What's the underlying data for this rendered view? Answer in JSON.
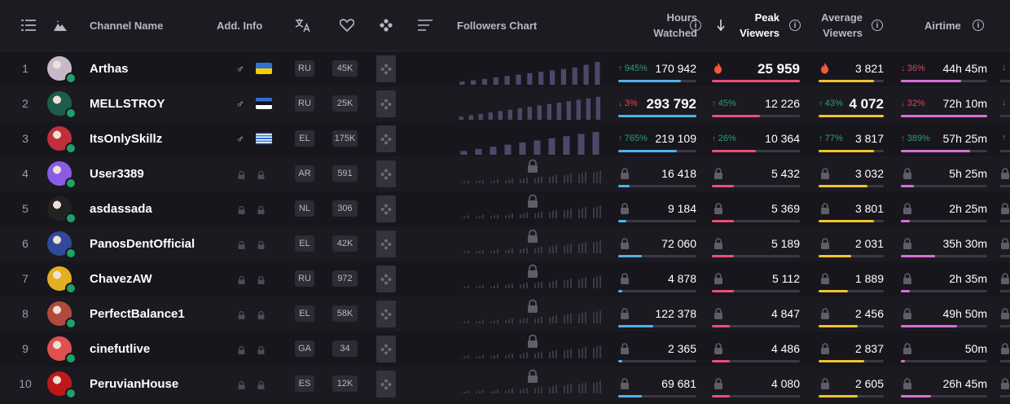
{
  "header": {
    "channel_name": "Channel Name",
    "add_info": "Add. Info",
    "followers_chart": "Followers Chart",
    "hours_watched": [
      "Hours",
      "Watched"
    ],
    "peak_viewers": [
      "Peak",
      "Viewers"
    ],
    "average_viewers": [
      "Average",
      "Viewers"
    ],
    "airtime": "Airtime",
    "info_glyph": "i"
  },
  "colors": {
    "hours": "#4fb3ec",
    "peak": "#ec4d77",
    "average": "#f2c230",
    "airtime": "#d86fd6",
    "up": "#2aa06a",
    "down": "#d24a5a",
    "chart_bar": "#4b4868"
  },
  "rows": [
    {
      "rank": "1",
      "name": "Arthas",
      "gender": "♂",
      "flag": "ua",
      "lang": "RU",
      "followers": "45K",
      "unlocked": true,
      "chart": [
        1,
        2,
        3,
        4,
        5,
        6,
        7,
        8,
        9,
        10,
        11,
        13,
        15
      ],
      "hours": {
        "change": "945%",
        "dir": "up",
        "value": "170 942",
        "fill": 0.8,
        "big": false
      },
      "peak": {
        "change": "",
        "dir": "",
        "value": "25 959",
        "fill": 1.0,
        "big": true,
        "fire": true
      },
      "avg": {
        "change": "",
        "dir": "",
        "value": "3 821",
        "fill": 0.85,
        "big": false,
        "fire": true
      },
      "air": {
        "change": "36%",
        "dir": "down",
        "value": "44h 45m",
        "fill": 0.7,
        "big": false
      }
    },
    {
      "rank": "2",
      "name": "MELLSTROY",
      "gender": "♂",
      "flag": "ee",
      "lang": "RU",
      "followers": "25K",
      "unlocked": true,
      "chart": [
        1,
        2,
        3,
        4,
        5,
        6,
        7,
        8,
        9,
        10,
        11,
        12,
        13,
        14,
        15
      ],
      "hours": {
        "change": "3%",
        "dir": "down",
        "value": "293 792",
        "fill": 1.0,
        "big": true
      },
      "peak": {
        "change": "45%",
        "dir": "up",
        "value": "12 226",
        "fill": 0.55,
        "big": false
      },
      "avg": {
        "change": "43%",
        "dir": "up",
        "value": "4 072",
        "fill": 1.0,
        "big": true
      },
      "air": {
        "change": "32%",
        "dir": "down",
        "value": "72h 10m",
        "fill": 1.0,
        "big": false
      }
    },
    {
      "rank": "3",
      "name": "ItsOnlySkillz",
      "gender": "♂",
      "flag": "gr",
      "lang": "EL",
      "followers": "175K",
      "unlocked": true,
      "chart": [
        1,
        2,
        3,
        4,
        5,
        6,
        7,
        8,
        9,
        10
      ],
      "hours": {
        "change": "765%",
        "dir": "up",
        "value": "219 109",
        "fill": 0.75,
        "big": false
      },
      "peak": {
        "change": "26%",
        "dir": "up",
        "value": "10 364",
        "fill": 0.5,
        "big": false
      },
      "avg": {
        "change": "77%",
        "dir": "up",
        "value": "3 817",
        "fill": 0.85,
        "big": false
      },
      "air": {
        "change": "389%",
        "dir": "up",
        "value": "57h 25m",
        "fill": 0.8,
        "big": false
      }
    },
    {
      "rank": "4",
      "name": "User3389",
      "gender": "",
      "flag": "",
      "lang": "AR",
      "followers": "591",
      "unlocked": false,
      "hours": {
        "value": "16 418",
        "fill": 0.15
      },
      "peak": {
        "value": "5 432",
        "fill": 0.25
      },
      "avg": {
        "value": "3 032",
        "fill": 0.75
      },
      "air": {
        "value": "5h 25m",
        "fill": 0.15
      }
    },
    {
      "rank": "5",
      "name": "asdassada",
      "gender": "",
      "flag": "",
      "lang": "NL",
      "followers": "306",
      "unlocked": false,
      "hours": {
        "value": "9 184",
        "fill": 0.1
      },
      "peak": {
        "value": "5 369",
        "fill": 0.25
      },
      "avg": {
        "value": "3 801",
        "fill": 0.85
      },
      "air": {
        "value": "2h 25m",
        "fill": 0.1
      }
    },
    {
      "rank": "6",
      "name": "PanosDentOfficial",
      "gender": "",
      "flag": "",
      "lang": "EL",
      "followers": "42K",
      "unlocked": false,
      "hours": {
        "value": "72 060",
        "fill": 0.3
      },
      "peak": {
        "value": "5 189",
        "fill": 0.25
      },
      "avg": {
        "value": "2 031",
        "fill": 0.5
      },
      "air": {
        "value": "35h 30m",
        "fill": 0.4
      }
    },
    {
      "rank": "7",
      "name": "ChavezAW",
      "gender": "",
      "flag": "",
      "lang": "RU",
      "followers": "972",
      "unlocked": false,
      "hours": {
        "value": "4 878",
        "fill": 0.05
      },
      "peak": {
        "value": "5 112",
        "fill": 0.25
      },
      "avg": {
        "value": "1 889",
        "fill": 0.45
      },
      "air": {
        "value": "2h 35m",
        "fill": 0.1
      }
    },
    {
      "rank": "8",
      "name": "PerfectBalance1",
      "gender": "",
      "flag": "",
      "lang": "EL",
      "followers": "58K",
      "unlocked": false,
      "hours": {
        "value": "122 378",
        "fill": 0.45
      },
      "peak": {
        "value": "4 847",
        "fill": 0.2
      },
      "avg": {
        "value": "2 456",
        "fill": 0.6
      },
      "air": {
        "value": "49h 50m",
        "fill": 0.65
      }
    },
    {
      "rank": "9",
      "name": "cinefutlive",
      "gender": "",
      "flag": "",
      "lang": "GA",
      "followers": "34",
      "unlocked": false,
      "hours": {
        "value": "2 365",
        "fill": 0.05
      },
      "peak": {
        "value": "4 486",
        "fill": 0.2
      },
      "avg": {
        "value": "2 837",
        "fill": 0.7
      },
      "air": {
        "value": "50m",
        "fill": 0.05
      }
    },
    {
      "rank": "10",
      "name": "PeruvianHouse",
      "gender": "",
      "flag": "",
      "lang": "ES",
      "followers": "12K",
      "unlocked": false,
      "hours": {
        "value": "69 681",
        "fill": 0.3
      },
      "peak": {
        "value": "4 080",
        "fill": 0.2
      },
      "avg": {
        "value": "2 605",
        "fill": 0.6
      },
      "air": {
        "value": "26h 45m",
        "fill": 0.35
      }
    }
  ]
}
